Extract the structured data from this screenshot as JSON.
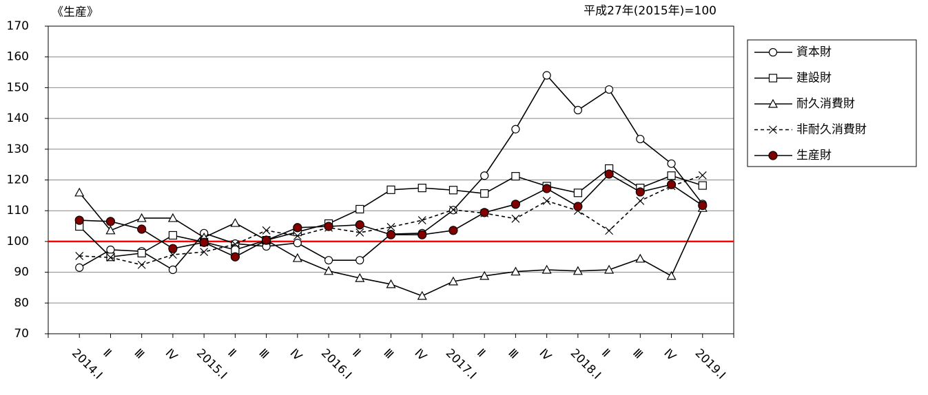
{
  "chart_data": {
    "type": "line",
    "title": "《生産》",
    "subtitle": "平成27年(2015年)=100",
    "categories": [
      "2014.Ⅰ",
      "Ⅱ",
      "Ⅲ",
      "Ⅳ",
      "2015.Ⅰ",
      "Ⅱ",
      "Ⅲ",
      "Ⅳ",
      "2016.Ⅰ",
      "Ⅱ",
      "Ⅲ",
      "Ⅳ",
      "2017.Ⅰ",
      "Ⅱ",
      "Ⅲ",
      "Ⅳ",
      "2018.Ⅰ",
      "Ⅱ",
      "Ⅲ",
      "Ⅳ",
      "2019.Ⅰ"
    ],
    "series": [
      {
        "name": "資本財",
        "color": "#000000",
        "marker": "circle",
        "dashed": false,
        "values": [
          91.5,
          97.3,
          96.8,
          90.8,
          102.7,
          99.3,
          98.4,
          99.5,
          93.9,
          93.9,
          102.4,
          102.7,
          110.2,
          121.4,
          136.5,
          154.0,
          142.7,
          149.4,
          133.3,
          125.3,
          112.2
        ]
      },
      {
        "name": "建設財",
        "color": "#000000",
        "marker": "square",
        "dashed": false,
        "values": [
          104.9,
          95.0,
          96.2,
          102.0,
          99.8,
          97.3,
          100.4,
          103.1,
          105.8,
          110.5,
          116.8,
          117.4,
          116.7,
          115.6,
          121.2,
          118.0,
          115.8,
          123.7,
          117.4,
          121.4,
          118.2
        ]
      },
      {
        "name": "耐久消費財",
        "color": "#000000",
        "marker": "triangle",
        "dashed": false,
        "values": [
          115.9,
          103.6,
          107.6,
          107.6,
          101.3,
          106.0,
          100.4,
          94.6,
          90.4,
          88.1,
          86.1,
          82.3,
          87.0,
          88.8,
          90.2,
          90.8,
          90.4,
          90.8,
          94.4,
          88.8,
          110.9
        ]
      },
      {
        "name": "非耐久消費財",
        "color": "#000000",
        "marker": "cross",
        "dashed": true,
        "values": [
          95.3,
          94.8,
          92.4,
          95.7,
          96.6,
          99.1,
          103.6,
          101.8,
          104.5,
          102.9,
          104.7,
          106.9,
          110.3,
          109.2,
          107.4,
          113.2,
          110.0,
          103.5,
          113.2,
          118.0,
          121.5
        ]
      },
      {
        "name": "生産財",
        "color": "#800000",
        "marker": "filled-circle",
        "dashed": false,
        "values": [
          106.9,
          106.5,
          104.0,
          97.7,
          99.7,
          95.0,
          100.4,
          104.5,
          104.9,
          105.4,
          102.2,
          102.2,
          103.6,
          109.4,
          112.1,
          117.2,
          111.4,
          121.9,
          116.1,
          118.5,
          111.7
        ]
      }
    ],
    "ylim": [
      70,
      170
    ],
    "yticks": [
      70,
      80,
      90,
      100,
      110,
      120,
      130,
      140,
      150,
      160,
      170
    ],
    "grid": true,
    "reference_line": {
      "value": 100,
      "color": "#ff0000"
    },
    "legend": "right"
  }
}
